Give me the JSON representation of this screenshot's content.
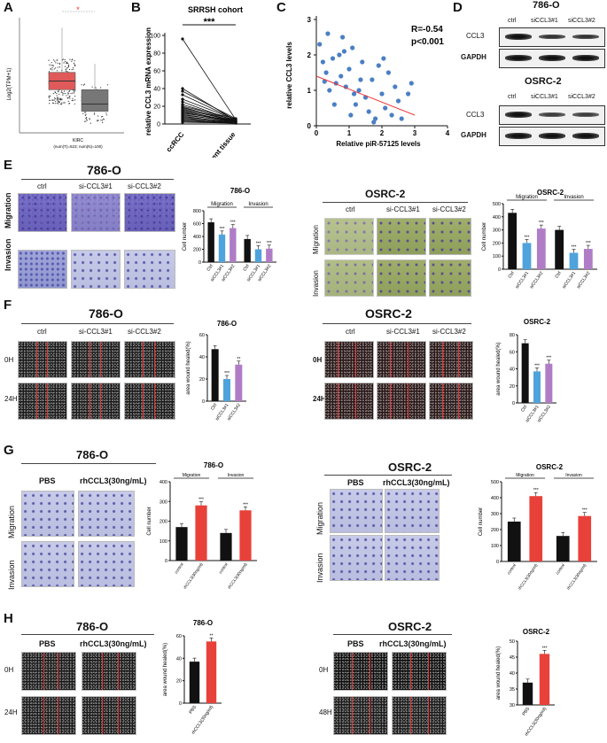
{
  "labels": {
    "A": "A",
    "B": "B",
    "C": "C",
    "D": "D",
    "E": "E",
    "F": "F",
    "G": "G",
    "H": "H"
  },
  "panelA": {
    "ylabel": "Log2(TPM+1)",
    "star": "*",
    "xtick": "KIRC",
    "xsub": "(num(T)=523; num(N)=100)",
    "box_tumor": {
      "q1": 3.0,
      "median": 3.6,
      "q3": 4.2,
      "min": 0.5,
      "max": 7.3
    },
    "box_normal": {
      "q1": 1.5,
      "median": 2.0,
      "q3": 3.0,
      "min": 0.5,
      "max": 4.8
    },
    "colors": {
      "tumor": "#e05a5a",
      "normal": "#777777"
    }
  },
  "panelB": {
    "title": "SRRSH cohort",
    "stars": "***",
    "ylabel": "relative CCL3 mRNA expression",
    "xticks": [
      "ccRCC",
      "adjacent tissue"
    ],
    "yticks": [
      "0",
      "20",
      "40",
      "60",
      "80",
      "100"
    ],
    "chart_data": {
      "type": "line",
      "title": "SRRSH cohort",
      "ylabel": "relative CCL3 mRNA expression",
      "categories": [
        "ccRCC",
        "adjacent tissue"
      ],
      "ylim": [
        0,
        100
      ],
      "pairs": [
        [
          96,
          5
        ],
        [
          40,
          4
        ],
        [
          37,
          6
        ],
        [
          33,
          5
        ],
        [
          28,
          5
        ],
        [
          25,
          3
        ],
        [
          22,
          4
        ],
        [
          20,
          6
        ],
        [
          19,
          3
        ],
        [
          18,
          5
        ],
        [
          17,
          3
        ],
        [
          16,
          4
        ],
        [
          15,
          2
        ],
        [
          14,
          3
        ],
        [
          13,
          2
        ],
        [
          12,
          4
        ],
        [
          11,
          2
        ],
        [
          10,
          3
        ],
        [
          9,
          1
        ],
        [
          8,
          2
        ],
        [
          7,
          1
        ],
        [
          6,
          2
        ],
        [
          5,
          1
        ],
        [
          4,
          1
        ],
        [
          3,
          1
        ],
        [
          2,
          1
        ]
      ]
    }
  },
  "panelC": {
    "r": "R=-0.54",
    "p": "p<0.001",
    "ylabel": "relative CCL3 levels",
    "xlabel": "Relative piR-57125 levels",
    "xticks": [
      "0",
      "1",
      "2",
      "3",
      "4"
    ],
    "yticks": [
      "0",
      "1",
      "2",
      "3"
    ],
    "chart_data": {
      "type": "scatter",
      "xlabel": "Relative piR-57125 levels",
      "ylabel": "relative CCL3 levels",
      "xlim": [
        0,
        4
      ],
      "ylim": [
        0,
        3
      ],
      "points": [
        [
          0.1,
          2.3
        ],
        [
          0.2,
          1.8
        ],
        [
          0.3,
          1.5
        ],
        [
          0.35,
          2.6
        ],
        [
          0.5,
          1.9
        ],
        [
          0.6,
          1.2
        ],
        [
          0.7,
          2.0
        ],
        [
          0.75,
          1.4
        ],
        [
          0.8,
          2.5
        ],
        [
          0.9,
          1.1
        ],
        [
          1.0,
          1.6
        ],
        [
          1.1,
          2.2
        ],
        [
          1.2,
          0.6
        ],
        [
          1.3,
          1.0
        ],
        [
          1.4,
          1.8
        ],
        [
          1.5,
          0.8
        ],
        [
          1.6,
          0.4
        ],
        [
          1.7,
          1.3
        ],
        [
          1.8,
          0.2
        ],
        [
          1.9,
          1.7
        ],
        [
          2.0,
          0.9
        ],
        [
          2.1,
          0.5
        ],
        [
          2.2,
          1.5
        ],
        [
          2.3,
          0.3
        ],
        [
          2.4,
          1.1
        ],
        [
          2.5,
          0.7
        ],
        [
          2.6,
          0.2
        ],
        [
          2.8,
          0.9
        ],
        [
          2.9,
          1.2
        ],
        [
          0.4,
          1.0
        ],
        [
          0.55,
          0.6
        ],
        [
          1.05,
          0.3
        ],
        [
          1.35,
          1.3
        ],
        [
          1.75,
          0.1
        ],
        [
          2.05,
          1.9
        ],
        [
          0.25,
          1.25
        ],
        [
          0.85,
          2.1
        ],
        [
          1.15,
          0.9
        ]
      ],
      "fit": [
        [
          0,
          1.4
        ],
        [
          3,
          0.3
        ]
      ]
    }
  },
  "panelD": {
    "cell1": "786-O",
    "cell2": "OSRC-2",
    "lanes": [
      "ctrl",
      "siCCL3#1",
      "siCCL3#2"
    ],
    "rows": [
      "CCL3",
      "GAPDH"
    ]
  },
  "panelE": {
    "cell1": "786-O",
    "cell2": "OSRC-2",
    "cols": [
      "ctrl",
      "si-CCL3#1",
      "si-CCL3#2"
    ],
    "rows": [
      "Migration",
      "Invasion"
    ],
    "chart1": {
      "title": "786-O",
      "ylabel": "Cell number",
      "groups": [
        "Migration",
        "Invasion"
      ],
      "yticks": [
        "0",
        "200",
        "400",
        "600",
        "800"
      ]
    },
    "chart2": {
      "title": "OSRC-2",
      "ylabel": "Cell number",
      "groups": [
        "Migration",
        "Invasion"
      ],
      "yticks": [
        "0",
        "100",
        "200",
        "300",
        "400",
        "500"
      ]
    },
    "chart_data": [
      {
        "type": "bar",
        "title": "786-O",
        "ylabel": "Cell number",
        "ylim": [
          0,
          800
        ],
        "categories": [
          "Ctrl",
          "siCCL3#1",
          "siCCL3#2",
          "Ctrl",
          "siCCL3#1",
          "siCCL3#2"
        ],
        "values": [
          620,
          430,
          530,
          360,
          200,
          210
        ],
        "stars": [
          "",
          "***",
          "***",
          "",
          "***",
          "***"
        ],
        "colors": [
          "#111111",
          "#4fa3dc",
          "#b07cc6",
          "#111111",
          "#4fa3dc",
          "#b07cc6"
        ]
      },
      {
        "type": "bar",
        "title": "OSRC-2",
        "ylabel": "Cell number",
        "ylim": [
          0,
          500
        ],
        "categories": [
          "Ctrl",
          "siCCL3#1",
          "siCCL3#2",
          "Ctrl",
          "siCCL3#1",
          "siCCL3#2"
        ],
        "values": [
          430,
          200,
          310,
          300,
          125,
          155
        ],
        "stars": [
          "",
          "***",
          "***",
          "",
          "***",
          "***"
        ],
        "colors": [
          "#111111",
          "#4fa3dc",
          "#b07cc6",
          "#111111",
          "#4fa3dc",
          "#b07cc6"
        ]
      }
    ]
  },
  "panelF": {
    "cell1": "786-O",
    "cell2": "OSRC-2",
    "cols": [
      "ctrl",
      "si-CCL3#1",
      "si-CCL3#2"
    ],
    "rows1": [
      "0H",
      "24H"
    ],
    "rows2": [
      "0H",
      "24H"
    ],
    "chart1": {
      "title": "786-O",
      "ylabel": "area wound healed(%)",
      "yticks": [
        "0",
        "20",
        "40",
        "60"
      ]
    },
    "chart2": {
      "title": "OSRC-2",
      "ylabel": "area wound healed(%)",
      "yticks": [
        "0",
        "20",
        "40",
        "60",
        "80"
      ]
    },
    "chart_data": [
      {
        "type": "bar",
        "title": "786-O",
        "ylabel": "area wound healed(%)",
        "ylim": [
          0,
          60
        ],
        "categories": [
          "Ctrl",
          "siCCL3#1",
          "siCCL3#2"
        ],
        "values": [
          47,
          20,
          33
        ],
        "stars": [
          "",
          "***",
          "**"
        ],
        "colors": [
          "#111111",
          "#4fa3dc",
          "#b07cc6"
        ]
      },
      {
        "type": "bar",
        "title": "OSRC-2",
        "ylabel": "area wound healed(%)",
        "ylim": [
          0,
          80
        ],
        "categories": [
          "Ctrl",
          "siCCL3#1",
          "siCCL3#2"
        ],
        "values": [
          70,
          37,
          46
        ],
        "stars": [
          "",
          "***",
          "***"
        ],
        "colors": [
          "#111111",
          "#4fa3dc",
          "#b07cc6"
        ]
      }
    ]
  },
  "panelG": {
    "cell1": "786-O",
    "cell2": "OSRC-2",
    "cols": [
      "PBS",
      "rhCCL3(30ng/mL)"
    ],
    "rows": [
      "Migration",
      "Invasion"
    ],
    "chart1": {
      "title": "786-O",
      "ylabel": "Cell number",
      "groups": [
        "Migration",
        "Invasion"
      ],
      "yticks": [
        "0",
        "100",
        "200",
        "300",
        "400"
      ]
    },
    "chart2": {
      "title": "OSRC-2",
      "ylabel": "Cell number",
      "groups": [
        "Migration",
        "Invasion"
      ],
      "yticks": [
        "0",
        "100",
        "200",
        "300",
        "400",
        "500"
      ]
    },
    "chart_data": [
      {
        "type": "bar",
        "title": "786-O",
        "ylabel": "Cell number",
        "ylim": [
          0,
          400
        ],
        "categories": [
          "control",
          "rhCCL3(30ng/ml)",
          "control",
          "rhCCL3(30ng/ml)"
        ],
        "values": [
          170,
          280,
          140,
          255
        ],
        "stars": [
          "",
          "***",
          "",
          "***"
        ],
        "colors": [
          "#111111",
          "#e8413a",
          "#111111",
          "#e8413a"
        ]
      },
      {
        "type": "bar",
        "title": "OSRC-2",
        "ylabel": "Cell number",
        "ylim": [
          0,
          500
        ],
        "categories": [
          "control",
          "rhCCL3(30ng/ml)",
          "control",
          "rhCCL3(30ng/ml)"
        ],
        "values": [
          250,
          410,
          160,
          285
        ],
        "stars": [
          "",
          "***",
          "",
          "***"
        ],
        "colors": [
          "#111111",
          "#e8413a",
          "#111111",
          "#e8413a"
        ]
      }
    ]
  },
  "panelH": {
    "cell1": "786-O",
    "cell2": "OSRC-2",
    "cols": [
      "PBS",
      "rhCCL3(30ng/mL)"
    ],
    "rows1": [
      "0H",
      "24H"
    ],
    "rows2": [
      "0H",
      "48H"
    ],
    "chart1": {
      "title": "786-O",
      "ylabel": "area wound healed(%)",
      "yticks": [
        "0",
        "20",
        "40",
        "60"
      ]
    },
    "chart2": {
      "title": "OSRC-2",
      "ylabel": "area wound healed(%)",
      "yticks": [
        "30",
        "35",
        "40",
        "45",
        "50"
      ]
    },
    "chart_data": [
      {
        "type": "bar",
        "title": "786-O",
        "ylabel": "area wound healed(%)",
        "ylim": [
          0,
          60
        ],
        "categories": [
          "PBS",
          "rhCCL3(30ng/ml)"
        ],
        "values": [
          37,
          55
        ],
        "stars": [
          "",
          "**"
        ],
        "colors": [
          "#111111",
          "#e8413a"
        ]
      },
      {
        "type": "bar",
        "title": "OSRC-2",
        "ylabel": "area wound healed(%)",
        "ylim": [
          30,
          50
        ],
        "categories": [
          "PBS",
          "rhCCL3(30ng/ml)"
        ],
        "values": [
          37,
          46
        ],
        "stars": [
          "",
          "***"
        ],
        "colors": [
          "#111111",
          "#e8413a"
        ]
      }
    ]
  }
}
